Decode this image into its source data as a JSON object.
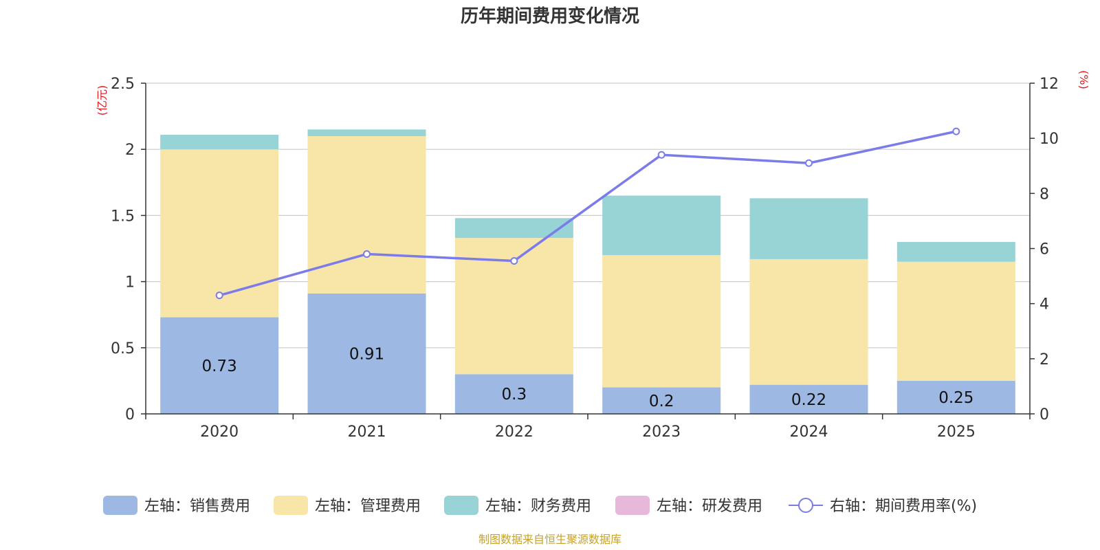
{
  "chart_data": {
    "type": "bar",
    "title": "历年期间费用变化情况",
    "categories": [
      "2020",
      "2021",
      "2022",
      "2023",
      "2024",
      "2025"
    ],
    "left_axis": {
      "unit": "(亿元)",
      "ylim": [
        0,
        2.5
      ],
      "ticks": [
        "0",
        "0.5",
        "1",
        "1.5",
        "2",
        "2.5"
      ],
      "tick_values": [
        0,
        0.5,
        1,
        1.5,
        2,
        2.5
      ]
    },
    "right_axis": {
      "unit": "(%)",
      "ylim": [
        0,
        12
      ],
      "ticks": [
        "0",
        "2",
        "4",
        "6",
        "8",
        "10",
        "12"
      ],
      "tick_values": [
        0,
        2,
        4,
        6,
        8,
        10,
        12
      ]
    },
    "series": [
      {
        "name": "左轴：销售费用",
        "axis": "left",
        "color": "#9db8e2",
        "values": [
          0.73,
          0.91,
          0.3,
          0.2,
          0.22,
          0.25
        ],
        "labels": [
          "0.73",
          "0.91",
          "0.3",
          "0.2",
          "0.22",
          "0.25"
        ]
      },
      {
        "name": "左轴：管理费用",
        "axis": "left",
        "color": "#f7e6a8",
        "values": [
          1.27,
          1.19,
          1.03,
          1.0,
          0.95,
          0.9
        ]
      },
      {
        "name": "左轴：财务费用",
        "axis": "left",
        "color": "#98d3d5",
        "values": [
          0.11,
          0.05,
          0.15,
          0.45,
          0.46,
          0.15
        ]
      },
      {
        "name": "左轴：研发费用",
        "axis": "left",
        "color": "#e8b8da",
        "values": [
          0,
          0,
          0,
          0,
          0,
          0
        ]
      },
      {
        "name": "右轴：期间费用率(%)",
        "axis": "right",
        "type": "line",
        "color": "#7b7bea",
        "values": [
          4.3,
          5.8,
          5.55,
          9.4,
          9.1,
          10.25
        ]
      }
    ],
    "grid": true,
    "legend_position": "bottom"
  },
  "source": "制图数据来自恒生聚源数据库"
}
